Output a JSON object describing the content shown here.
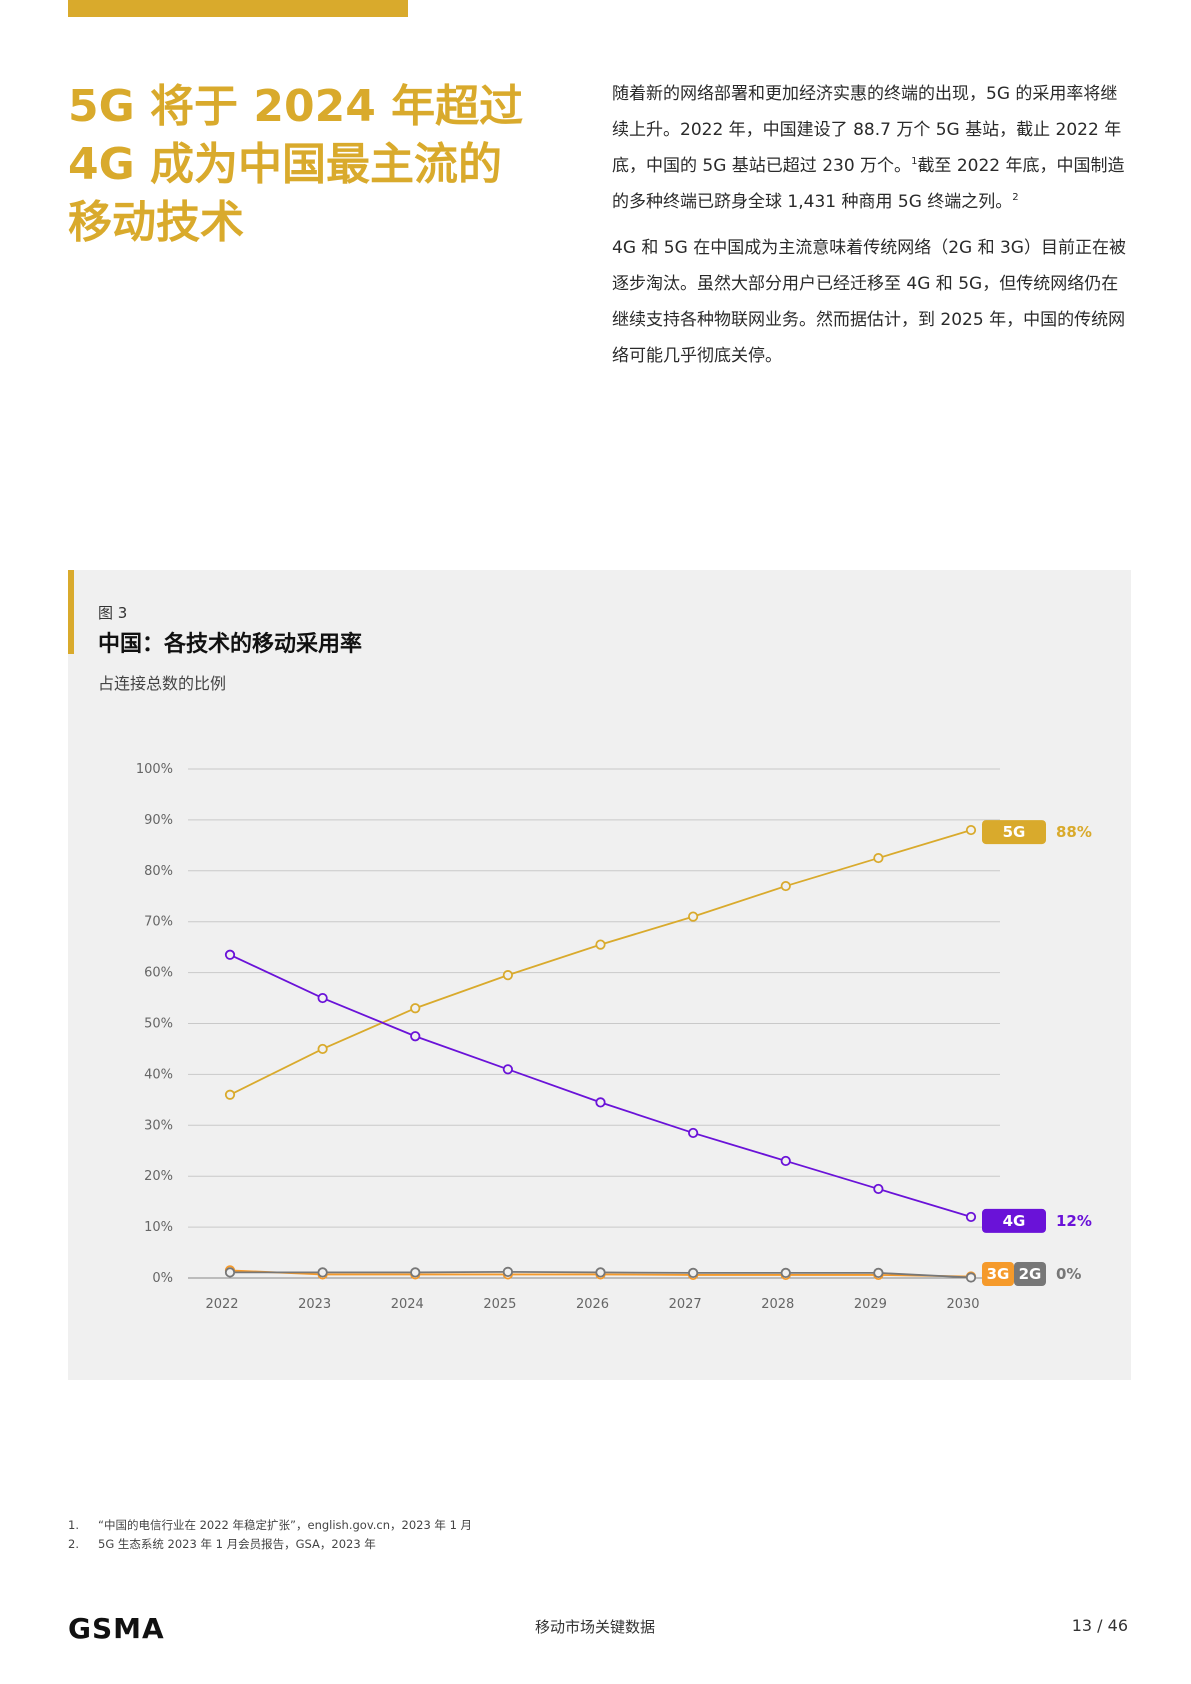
{
  "headline": [
    "5G 将于 2024 年超过",
    "4G 成为中国最主流的",
    "移动技术"
  ],
  "intro": {
    "p1_a": "随着新的网络部署和更加经济实惠的终端的出现，5G 的采用率将继续上升。2022 年，中国建设了 88.7 万个 5G 基站，截止 2022 年底，中国的 5G 基站已超过 230 万个。",
    "p1_sup1": "1",
    "p1_b": "截至 2022 年底，中国制造的多种终端已跻身全球 1,431 种商用 5G 终端之列。",
    "p1_sup2": "2",
    "p2": "4G 和 5G 在中国成为主流意味着传统网络（2G 和 3G）目前正在被逐步淘汰。虽然大部分用户已经迁移至 4G 和 5G，但传统网络仍在继续支持各种物联网业务。然而据估计，到 2025 年，中国的传统网络可能几乎彻底关停。"
  },
  "figure": {
    "label": "图 3",
    "title": "中国：各技术的移动采用率",
    "subtitle": "占连接总数的比例"
  },
  "chart_data": {
    "type": "line",
    "x": [
      "2022",
      "2023",
      "2024",
      "2025",
      "2026",
      "2027",
      "2028",
      "2029",
      "2030"
    ],
    "ylim": [
      0,
      100
    ],
    "yticks": [
      "0%",
      "10%",
      "20%",
      "30%",
      "40%",
      "50%",
      "60%",
      "70%",
      "80%",
      "90%",
      "100%"
    ],
    "grid": true,
    "series": [
      {
        "name": "5G",
        "color": "#d9aa2c",
        "values": [
          36,
          45,
          53,
          59.5,
          65.5,
          71,
          77,
          82.5,
          88
        ],
        "end_label": "88%"
      },
      {
        "name": "4G",
        "color": "#6a12d8",
        "values": [
          63.5,
          55,
          47.5,
          41,
          34.5,
          28.5,
          23,
          17.5,
          12
        ],
        "end_label": "12%"
      },
      {
        "name": "3G",
        "color": "#f59a2b",
        "values": [
          1.5,
          0.7,
          0.7,
          0.7,
          0.7,
          0.6,
          0.6,
          0.6,
          0.3
        ],
        "end_label": ""
      },
      {
        "name": "2G",
        "color": "#777777",
        "values": [
          1.1,
          1.1,
          1.1,
          1.2,
          1.1,
          1.0,
          1.0,
          1.0,
          0.1
        ],
        "end_label": "0%"
      }
    ]
  },
  "footnotes": [
    {
      "num": "1.",
      "text": "“中国的电信行业在 2022 年稳定扩张”，english.gov.cn，2023 年 1 月"
    },
    {
      "num": "2.",
      "text": "5G 生态系统 2023 年 1 月会员报告，GSA，2023 年"
    }
  ],
  "footer": {
    "logo": "GSMA",
    "center": "移动市场关键数据",
    "page": "13 / 46"
  }
}
